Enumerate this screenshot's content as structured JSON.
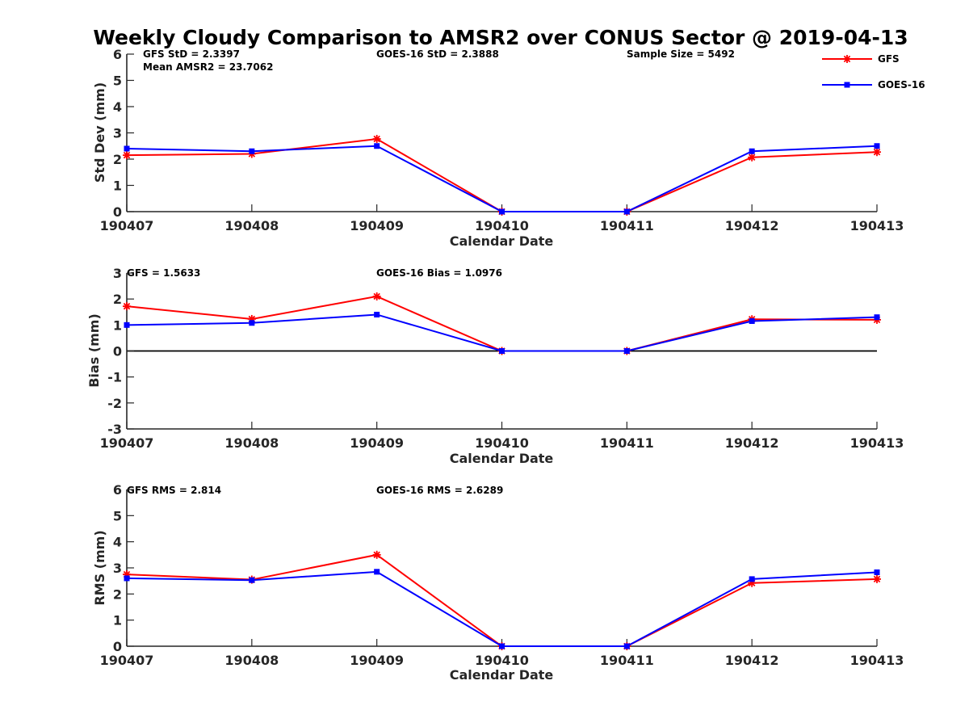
{
  "title": "Weekly Cloudy Comparison to AMSR2 over CONUS Sector @ 2019-04-13",
  "legend": {
    "placement": "top-right",
    "items": [
      {
        "label": "GFS",
        "color": "#ff0000",
        "marker": "asterisk"
      },
      {
        "label": "GOES-16",
        "color": "#0000ff",
        "marker": "square"
      }
    ]
  },
  "chart_data": [
    {
      "type": "line",
      "xlabel": "Calendar Date",
      "ylabel": "Std Dev (mm)",
      "categories": [
        "190407",
        "190408",
        "190409",
        "190410",
        "190411",
        "190412",
        "190413"
      ],
      "ylim": [
        0,
        6
      ],
      "yticks": [
        "0",
        "1",
        "2",
        "3",
        "4",
        "5",
        "6"
      ],
      "zero_line": false,
      "series": [
        {
          "name": "GFS",
          "color": "#ff0000",
          "marker": "asterisk",
          "values": [
            2.15,
            2.2,
            2.77,
            0,
            0,
            2.07,
            2.27
          ]
        },
        {
          "name": "GOES-16",
          "color": "#0000ff",
          "marker": "square",
          "values": [
            2.4,
            2.3,
            2.5,
            0,
            0,
            2.3,
            2.5
          ]
        }
      ],
      "annotations": [
        "GFS StD = 2.3397",
        "Mean AMSR2 = 23.7062",
        "GOES-16 StD = 2.3888",
        "Sample Size = 5492"
      ]
    },
    {
      "type": "line",
      "xlabel": "Calendar Date",
      "ylabel": "Bias (mm)",
      "categories": [
        "190407",
        "190408",
        "190409",
        "190410",
        "190411",
        "190412",
        "190413"
      ],
      "ylim": [
        -3,
        3
      ],
      "yticks": [
        "-3",
        "-2",
        "-1",
        "0",
        "1",
        "2",
        "3"
      ],
      "zero_line": true,
      "series": [
        {
          "name": "GFS",
          "color": "#ff0000",
          "marker": "asterisk",
          "values": [
            1.72,
            1.23,
            2.1,
            0,
            0,
            1.22,
            1.2
          ]
        },
        {
          "name": "GOES-16",
          "color": "#0000ff",
          "marker": "square",
          "values": [
            1.0,
            1.08,
            1.4,
            0,
            0,
            1.15,
            1.3
          ]
        }
      ],
      "annotations": [
        "GFS = 1.5633",
        "GOES-16 Bias  = 1.0976"
      ]
    },
    {
      "type": "line",
      "xlabel": "Calendar Date",
      "ylabel": "RMS (mm)",
      "categories": [
        "190407",
        "190408",
        "190409",
        "190410",
        "190411",
        "190412",
        "190413"
      ],
      "ylim": [
        0,
        6
      ],
      "yticks": [
        "0",
        "1",
        "2",
        "3",
        "4",
        "5",
        "6"
      ],
      "zero_line": false,
      "series": [
        {
          "name": "GFS",
          "color": "#ff0000",
          "marker": "asterisk",
          "values": [
            2.75,
            2.55,
            3.5,
            0,
            0,
            2.42,
            2.57
          ]
        },
        {
          "name": "GOES-16",
          "color": "#0000ff",
          "marker": "square",
          "values": [
            2.6,
            2.53,
            2.85,
            0,
            0,
            2.57,
            2.83
          ]
        }
      ],
      "annotations": [
        "GFS RMS = 2.814",
        "GOES-16 RMS = 2.6289"
      ]
    }
  ]
}
